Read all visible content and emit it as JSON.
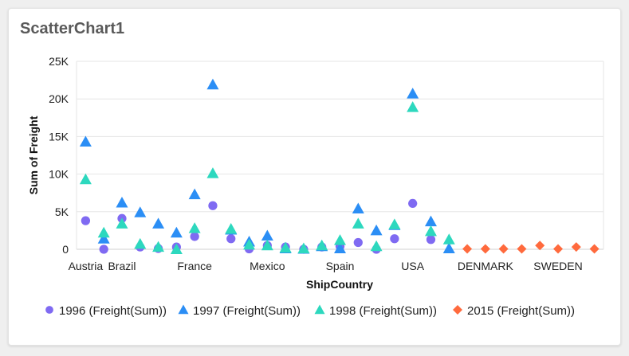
{
  "title": "ScatterChart1",
  "chart_data": {
    "type": "scatter",
    "xlabel": "ShipCountry",
    "ylabel": "Sum of Freight",
    "ylim": [
      0,
      25000
    ],
    "yticks": [
      0,
      5000,
      10000,
      15000,
      20000,
      25000
    ],
    "ytick_labels": [
      "0",
      "5K",
      "10K",
      "15K",
      "20K",
      "25K"
    ],
    "grid": true,
    "legend_position": "bottom",
    "categories": [
      "Austria",
      "",
      "Brazil",
      "",
      "",
      "",
      "France",
      "",
      "",
      "",
      "Mexico",
      "",
      "",
      "",
      "Spain",
      "",
      "",
      "",
      "USA",
      "",
      "",
      "",
      "DENMARK",
      "",
      "",
      "",
      "SWEDEN",
      "",
      ""
    ],
    "series": [
      {
        "name": "1996 (Freight(Sum))",
        "marker": "circle",
        "color": "#7f6af2",
        "values": [
          3800,
          0,
          4100,
          300,
          100,
          300,
          1700,
          5800,
          1400,
          50,
          500,
          300,
          0,
          300,
          400,
          900,
          0,
          1400,
          6100,
          1300,
          null,
          null,
          null,
          null,
          null,
          null,
          null,
          null,
          null
        ]
      },
      {
        "name": "1997 (Freight(Sum))",
        "marker": "triangle",
        "color": "#2b8ef5",
        "values": [
          14300,
          1400,
          6200,
          4900,
          3400,
          2200,
          7300,
          21900,
          2600,
          1000,
          1800,
          100,
          50,
          400,
          100,
          5400,
          2500,
          3200,
          20700,
          3700,
          100,
          null,
          null,
          null,
          null,
          null,
          null,
          null,
          null
        ]
      },
      {
        "name": "1998 (Freight(Sum))",
        "marker": "triangle",
        "color": "#2dd8be",
        "values": [
          9300,
          2200,
          3400,
          700,
          300,
          0,
          2800,
          10100,
          2700,
          600,
          500,
          200,
          100,
          500,
          1200,
          3400,
          400,
          3300,
          18900,
          2400,
          1300,
          null,
          null,
          null,
          null,
          null,
          null,
          null,
          null
        ]
      },
      {
        "name": "2015 (Freight(Sum))",
        "marker": "diamond",
        "color": "#ff6a3d",
        "values": [
          null,
          null,
          null,
          null,
          null,
          null,
          null,
          null,
          null,
          null,
          null,
          null,
          null,
          null,
          null,
          null,
          null,
          null,
          null,
          null,
          null,
          50,
          50,
          50,
          50,
          500,
          50,
          300,
          50
        ]
      }
    ]
  }
}
